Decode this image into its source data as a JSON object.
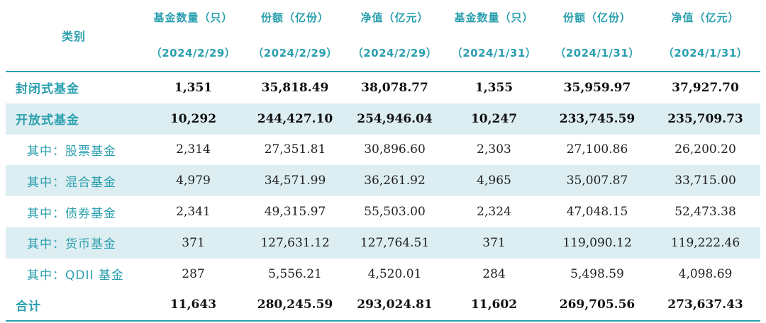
{
  "header": {
    "category_label": "类别",
    "columns": [
      {
        "title": "基金数量（只）",
        "date": "（2024/2/29）"
      },
      {
        "title": "份额（亿份）",
        "date": "（2024/2/29）"
      },
      {
        "title": "净值（亿元）",
        "date": "（2024/2/29）"
      },
      {
        "title": "基金数量（只）",
        "date": "（2024/1/31）"
      },
      {
        "title": "份额（亿份）",
        "date": "（2024/1/31）"
      },
      {
        "title": "净值（亿元）",
        "date": "（2024/1/31）"
      }
    ]
  },
  "rows": [
    {
      "label": "封闭式基金",
      "values": [
        "1,351",
        "35,818.49",
        "38,078.77",
        "1,355",
        "35,959.97",
        "37,927.70"
      ]
    },
    {
      "label": "开放式基金",
      "values": [
        "10,292",
        "244,427.10",
        "254,946.04",
        "10,247",
        "233,745.59",
        "235,709.73"
      ]
    },
    {
      "label": "其中：股票基金",
      "values": [
        "2,314",
        "27,351.81",
        "30,896.60",
        "2,303",
        "27,100.86",
        "26,200.20"
      ]
    },
    {
      "label": "其中：混合基金",
      "values": [
        "4,979",
        "34,571.99",
        "36,261.92",
        "4,965",
        "35,007.87",
        "33,715.00"
      ]
    },
    {
      "label": "其中：债券基金",
      "values": [
        "2,341",
        "49,315.97",
        "55,503.00",
        "2,324",
        "47,048.15",
        "52,473.38"
      ]
    },
    {
      "label": "其中：货币基金",
      "values": [
        "371",
        "127,631.12",
        "127,764.51",
        "371",
        "119,090.12",
        "119,222.46"
      ]
    },
    {
      "label": "其中：QDII 基金",
      "values": [
        "287",
        "5,556.21",
        "4,520.01",
        "284",
        "5,498.59",
        "4,098.69"
      ]
    },
    {
      "label": "合计",
      "values": [
        "11,643",
        "280,245.59",
        "293,024.81",
        "11,602",
        "269,705.56",
        "273,637.43"
      ]
    }
  ],
  "colors": {
    "accent": "#2a9fae",
    "row_shade": "#dceef2"
  }
}
